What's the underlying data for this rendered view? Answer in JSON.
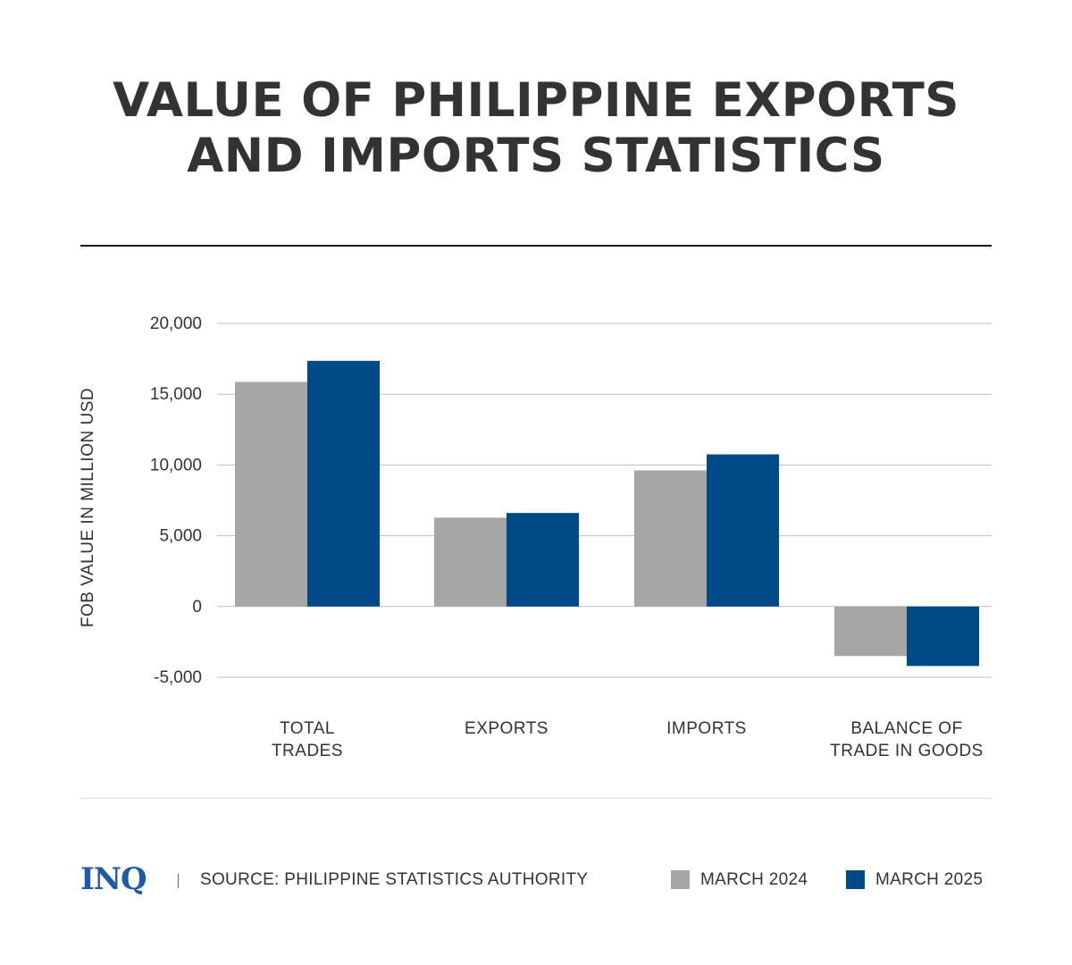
{
  "title_lines": [
    "VALUE OF PHILIPPINE EXPORTS",
    "AND IMPORTS STATISTICS"
  ],
  "colors": {
    "march_2024": "#a6a6a6",
    "march_2025": "#004a87",
    "logo": "#1e5aa8",
    "gridline": "#bdbdbd"
  },
  "footer": {
    "logo_text": "INQ",
    "source": "SOURCE: PHILIPPINE STATISTICS AUTHORITY"
  },
  "legend": [
    {
      "label": "MARCH 2024",
      "color": "#a6a6a6"
    },
    {
      "label": "MARCH 2025",
      "color": "#004a87"
    }
  ],
  "chart_data": {
    "type": "bar",
    "title": "VALUE OF PHILIPPINE EXPORTS AND IMPORTS STATISTICS",
    "ylabel": "FOB VALUE IN MILLION USD",
    "xlabel": "",
    "categories": [
      [
        "TOTAL",
        "TRADES"
      ],
      [
        "EXPORTS"
      ],
      [
        "IMPORTS"
      ],
      [
        "BALANCE OF",
        "TRADE IN GOODS"
      ]
    ],
    "series": [
      {
        "name": "MARCH 2024",
        "color": "#a6a6a6",
        "values": [
          15870,
          6280,
          9620,
          -3500
        ]
      },
      {
        "name": "MARCH 2025",
        "color": "#004a87",
        "values": [
          17360,
          6610,
          10750,
          -4200
        ]
      }
    ],
    "ylim": [
      -5000,
      20000
    ],
    "yticks": [
      20000,
      15000,
      10000,
      5000,
      0,
      -5000
    ],
    "ytick_labels": [
      "20,000",
      "15,000",
      "10,000",
      "5,000",
      "0",
      "-5,000"
    ],
    "grid": true,
    "legend_position": "bottom-right"
  }
}
